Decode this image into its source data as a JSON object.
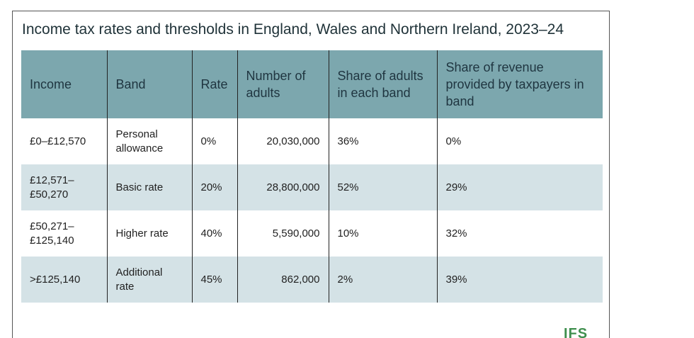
{
  "title": "Income tax rates and thresholds in England, Wales and Northern Ireland, 2023–24",
  "table": {
    "header": [
      "Income",
      "Band",
      "Rate",
      "Number of adults",
      "Share of adults in each band",
      "Share of revenue provided by taxpayers in band"
    ],
    "rows": [
      [
        "£0–£12,570",
        "Personal allowance",
        "0%",
        "20,030,000",
        "36%",
        "0%"
      ],
      [
        "£12,571–£50,270",
        "Basic rate",
        "20%",
        "28,800,000",
        "52%",
        "29%"
      ],
      [
        "£50,271–£125,140",
        "Higher rate",
        "40%",
        "5,590,000",
        "10%",
        "32%"
      ],
      [
        ">£125,140",
        "Additional rate",
        "45%",
        "862,000",
        "2%",
        "39%"
      ]
    ]
  },
  "logo": "IFS"
}
